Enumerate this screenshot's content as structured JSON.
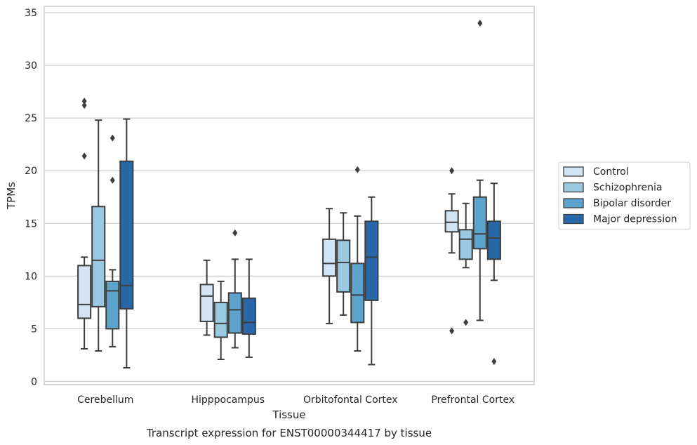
{
  "chart_data": {
    "type": "box",
    "title": "",
    "caption": "Transcript expression for ENST00000344417 by tissue",
    "xlabel": "Tissue",
    "ylabel": "TPMs",
    "ylim": [
      0,
      35
    ],
    "yticks": [
      0,
      5,
      10,
      15,
      20,
      25,
      30,
      35
    ],
    "grid": true,
    "legend_position": "right",
    "categories": [
      "Cerebellum",
      "Hipppocampus",
      "Orbitofontal Cortex",
      "Prefrontal Cortex"
    ],
    "series": [
      {
        "name": "Control",
        "color": "#d2e3f3",
        "boxes": [
          {
            "whislo": 3.1,
            "q1": 6.0,
            "med": 7.3,
            "q3": 11.0,
            "whishi": 11.8,
            "fliers": [
              21.4,
              26.2,
              26.6
            ]
          },
          {
            "whislo": 4.4,
            "q1": 5.7,
            "med": 8.1,
            "q3": 9.2,
            "whishi": 11.5,
            "fliers": []
          },
          {
            "whislo": 5.5,
            "q1": 10.0,
            "med": 11.2,
            "q3": 13.5,
            "whishi": 16.4,
            "fliers": []
          },
          {
            "whislo": 12.2,
            "q1": 14.2,
            "med": 15.1,
            "q3": 16.2,
            "whishi": 17.8,
            "fliers": [
              20.0,
              4.8
            ]
          }
        ]
      },
      {
        "name": "Schizophrenia",
        "color": "#9ac8e0",
        "boxes": [
          {
            "whislo": 2.9,
            "q1": 7.1,
            "med": 11.5,
            "q3": 16.6,
            "whishi": 24.8,
            "fliers": []
          },
          {
            "whislo": 2.1,
            "q1": 4.2,
            "med": 5.5,
            "q3": 7.5,
            "whishi": 9.5,
            "fliers": []
          },
          {
            "whislo": 6.3,
            "q1": 8.5,
            "med": 11.3,
            "q3": 13.4,
            "whishi": 16.0,
            "fliers": []
          },
          {
            "whislo": 10.8,
            "q1": 11.6,
            "med": 13.5,
            "q3": 14.4,
            "whishi": 16.9,
            "fliers": [
              5.6
            ]
          }
        ]
      },
      {
        "name": "Bipolar disorder",
        "color": "#5ca3cd",
        "boxes": [
          {
            "whislo": 3.3,
            "q1": 5.0,
            "med": 8.6,
            "q3": 9.5,
            "whishi": 10.6,
            "fliers": [
              19.1,
              23.1
            ]
          },
          {
            "whislo": 3.2,
            "q1": 4.6,
            "med": 6.8,
            "q3": 8.4,
            "whishi": 11.6,
            "fliers": [
              14.1
            ]
          },
          {
            "whislo": 2.9,
            "q1": 5.6,
            "med": 8.2,
            "q3": 11.2,
            "whishi": 15.7,
            "fliers": [
              20.1
            ]
          },
          {
            "whislo": 5.8,
            "q1": 12.6,
            "med": 14.0,
            "q3": 17.5,
            "whishi": 19.1,
            "fliers": [
              34.0
            ]
          }
        ]
      },
      {
        "name": "Major depression",
        "color": "#2867a8",
        "boxes": [
          {
            "whislo": 1.3,
            "q1": 6.9,
            "med": 9.1,
            "q3": 20.9,
            "whishi": 24.9,
            "fliers": []
          },
          {
            "whislo": 2.3,
            "q1": 4.5,
            "med": 5.6,
            "q3": 7.9,
            "whishi": 11.6,
            "fliers": []
          },
          {
            "whislo": 1.6,
            "q1": 7.7,
            "med": 11.8,
            "q3": 15.2,
            "whishi": 17.5,
            "fliers": []
          },
          {
            "whislo": 9.6,
            "q1": 11.6,
            "med": 13.6,
            "q3": 15.2,
            "whishi": 18.8,
            "fliers": [
              1.9
            ]
          }
        ]
      }
    ]
  }
}
